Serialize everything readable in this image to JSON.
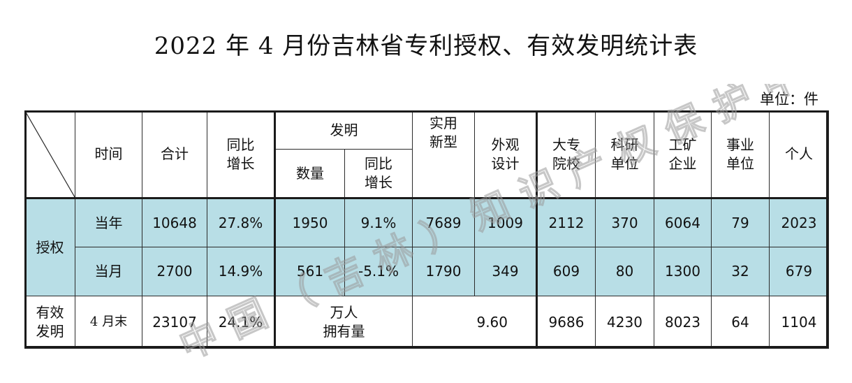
{
  "title": "2022 年 4 月份吉林省专利授权、有效发明统计表",
  "unit": "单位：件",
  "header": {
    "time": "时间",
    "total": "合计",
    "yoy": "同比\n增长",
    "invention": "发明",
    "inv_count": "数量",
    "inv_yoy": "同比\n增长",
    "utility": "实用\n新型",
    "design": "外观\n设计",
    "college": "大专\n院校",
    "research": "科研\n单位",
    "industry": "工矿\n企业",
    "institution": "事业\n单位",
    "individual": "个人"
  },
  "grant": {
    "label": "授权",
    "rows": [
      {
        "time": "当年",
        "total": "10648",
        "yoy": "27.8%",
        "inv_count": "1950",
        "inv_yoy": "9.1%",
        "utility": "7689",
        "design": "1009",
        "college": "2112",
        "research": "370",
        "industry": "6064",
        "institution": "79",
        "individual": "2023"
      },
      {
        "time": "当月",
        "total": "2700",
        "yoy": "14.9%",
        "inv_count": "561",
        "inv_yoy": "-5.1%",
        "utility": "1790",
        "design": "349",
        "college": "609",
        "research": "80",
        "industry": "1300",
        "institution": "32",
        "individual": "679"
      }
    ]
  },
  "valid": {
    "label": "有效\n发明",
    "time": "4 月末",
    "total": "23107",
    "yoy": "24.1%",
    "per_10k_label": "万人\n拥有量",
    "per_10k_value": "9.60",
    "college": "9686",
    "research": "4230",
    "industry": "8023",
    "institution": "64",
    "individual": "1104"
  },
  "watermark": "中国（吉林）知识产权保护中心"
}
